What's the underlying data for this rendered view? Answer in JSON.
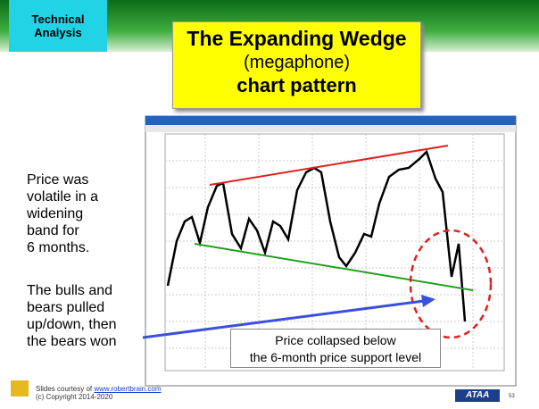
{
  "header": {
    "tag": [
      "Technical",
      "Analysis"
    ],
    "title": "The Expanding Wedge",
    "subtitle": "(megaphone)",
    "title2": "chart pattern"
  },
  "notes": [
    [
      "Price was",
      "volatile in a",
      "widening",
      "band for",
      "6 months."
    ],
    [
      "The bulls and",
      "bears pulled",
      "up/down, then",
      "the bears won"
    ]
  ],
  "callout": [
    "Price collapsed below",
    "the 6-month price support level"
  ],
  "footer": {
    "credit": "Slides courtesy of",
    "link": "www.robertbrain.com",
    "copyright": "(c) Copyright 2014-2020",
    "logo": "ATAA",
    "page": "53"
  }
}
